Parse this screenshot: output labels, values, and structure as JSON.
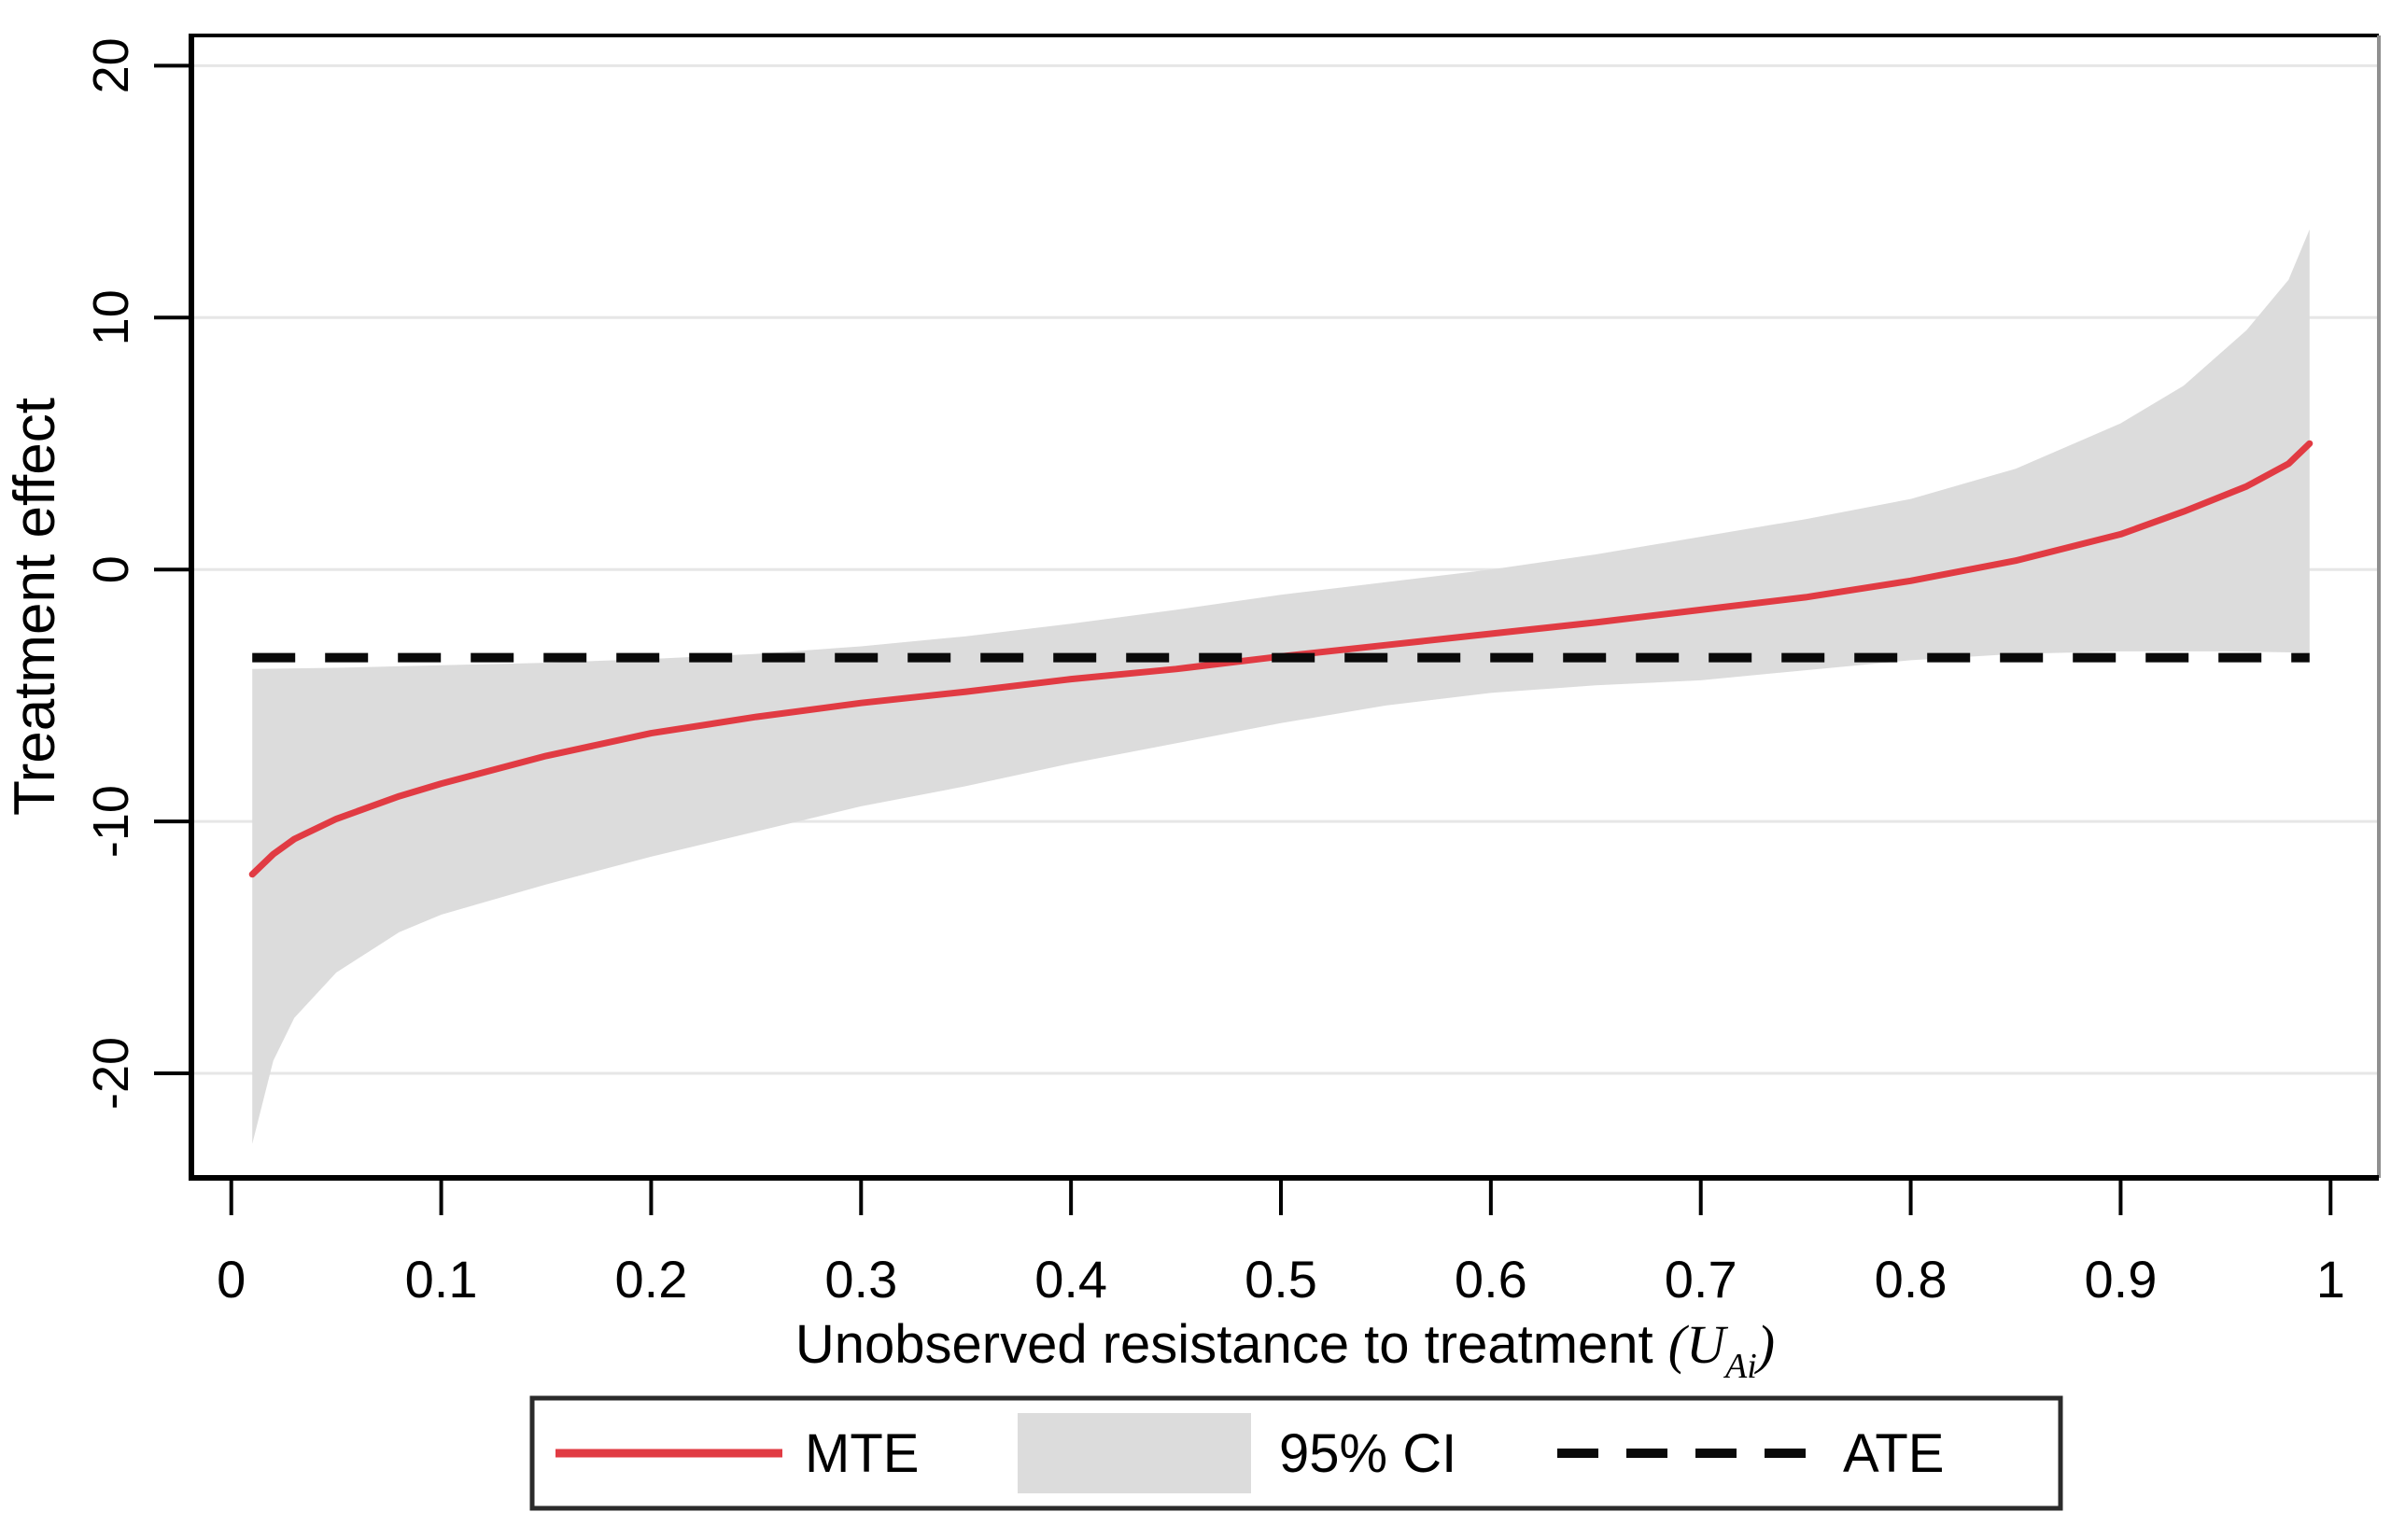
{
  "chart_data": {
    "type": "line",
    "title": "",
    "xlabel": "Unobserved resistance to treatment",
    "xlabel_math": {
      "pre": "(U",
      "sub": "Ai",
      "post": ")"
    },
    "ylabel": "Treatment effect",
    "xlim": [
      -0.019,
      1.023
    ],
    "ylim": [
      -24.15,
      21.2
    ],
    "x_ticks": [
      0,
      0.1,
      0.2,
      0.3,
      0.4,
      0.5,
      0.6,
      0.7,
      0.8,
      0.9,
      1
    ],
    "x_tick_labels": [
      "0",
      "0.1",
      "0.2",
      "0.3",
      "0.4",
      "0.5",
      "0.6",
      "0.7",
      "0.8",
      "0.9",
      "1"
    ],
    "y_ticks": [
      -20,
      -10,
      0,
      10,
      20
    ],
    "y_tick_labels": [
      "-20",
      "-10",
      "0",
      "10",
      "20"
    ],
    "grid": "horizontal",
    "legend_position": "bottom",
    "series": [
      {
        "name": "95% CI",
        "type": "band",
        "color": "#dcdcdc",
        "upper": [
          [
            0.01,
            -3.95
          ],
          [
            0.05,
            -3.9
          ],
          [
            0.1,
            -3.8
          ],
          [
            0.15,
            -3.7
          ],
          [
            0.2,
            -3.55
          ],
          [
            0.25,
            -3.35
          ],
          [
            0.3,
            -3.05
          ],
          [
            0.35,
            -2.65
          ],
          [
            0.4,
            -2.15
          ],
          [
            0.45,
            -1.6
          ],
          [
            0.5,
            -1.0
          ],
          [
            0.55,
            -0.5
          ],
          [
            0.6,
            0.0
          ],
          [
            0.65,
            0.6
          ],
          [
            0.7,
            1.3
          ],
          [
            0.75,
            2.0
          ],
          [
            0.8,
            2.8
          ],
          [
            0.85,
            4.0
          ],
          [
            0.9,
            5.8
          ],
          [
            0.93,
            7.3
          ],
          [
            0.96,
            9.5
          ],
          [
            0.98,
            11.5
          ],
          [
            0.99,
            13.5
          ]
        ],
        "lower": [
          [
            0.01,
            -22.8
          ],
          [
            0.02,
            -19.5
          ],
          [
            0.03,
            -17.8
          ],
          [
            0.05,
            -16.0
          ],
          [
            0.08,
            -14.4
          ],
          [
            0.1,
            -13.7
          ],
          [
            0.15,
            -12.5
          ],
          [
            0.2,
            -11.4
          ],
          [
            0.25,
            -10.4
          ],
          [
            0.3,
            -9.4
          ],
          [
            0.35,
            -8.6
          ],
          [
            0.4,
            -7.7
          ],
          [
            0.45,
            -6.9
          ],
          [
            0.5,
            -6.1
          ],
          [
            0.55,
            -5.4
          ],
          [
            0.6,
            -4.9
          ],
          [
            0.65,
            -4.6
          ],
          [
            0.7,
            -4.4
          ],
          [
            0.75,
            -4.0
          ],
          [
            0.8,
            -3.6
          ],
          [
            0.85,
            -3.35
          ],
          [
            0.9,
            -3.25
          ],
          [
            0.95,
            -3.25
          ],
          [
            0.99,
            -3.3
          ]
        ]
      },
      {
        "name": "MTE",
        "type": "line",
        "color": "#e13b43",
        "points": [
          [
            0.01,
            -12.1
          ],
          [
            0.02,
            -11.3
          ],
          [
            0.03,
            -10.7
          ],
          [
            0.05,
            -9.9
          ],
          [
            0.08,
            -9.0
          ],
          [
            0.1,
            -8.5
          ],
          [
            0.15,
            -7.4
          ],
          [
            0.2,
            -6.5
          ],
          [
            0.25,
            -5.85
          ],
          [
            0.3,
            -5.3
          ],
          [
            0.35,
            -4.85
          ],
          [
            0.4,
            -4.35
          ],
          [
            0.45,
            -3.95
          ],
          [
            0.5,
            -3.45
          ],
          [
            0.55,
            -3.0
          ],
          [
            0.6,
            -2.55
          ],
          [
            0.65,
            -2.1
          ],
          [
            0.7,
            -1.6
          ],
          [
            0.75,
            -1.1
          ],
          [
            0.8,
            -0.45
          ],
          [
            0.85,
            0.35
          ],
          [
            0.9,
            1.4
          ],
          [
            0.93,
            2.3
          ],
          [
            0.96,
            3.3
          ],
          [
            0.98,
            4.2
          ],
          [
            0.99,
            5.0
          ]
        ]
      },
      {
        "name": "ATE",
        "type": "dashed-hline",
        "color": "#0a0a0a",
        "value": -3.5,
        "x_start": 0.01,
        "x_end": 0.99
      }
    ],
    "legend": [
      {
        "label": "MTE",
        "swatch": "line",
        "color": "#e13b43"
      },
      {
        "label": "95% CI",
        "swatch": "box",
        "color": "#dcdcdc"
      },
      {
        "label": "ATE",
        "swatch": "dash",
        "color": "#0a0a0a"
      }
    ]
  },
  "style_colors": {
    "grid": "#e6e6e6",
    "axis": "#000000",
    "frame_right": "#8f8f8f",
    "text": "#000000",
    "legend_border": "#2b2b2b",
    "background": "#ffffff"
  }
}
